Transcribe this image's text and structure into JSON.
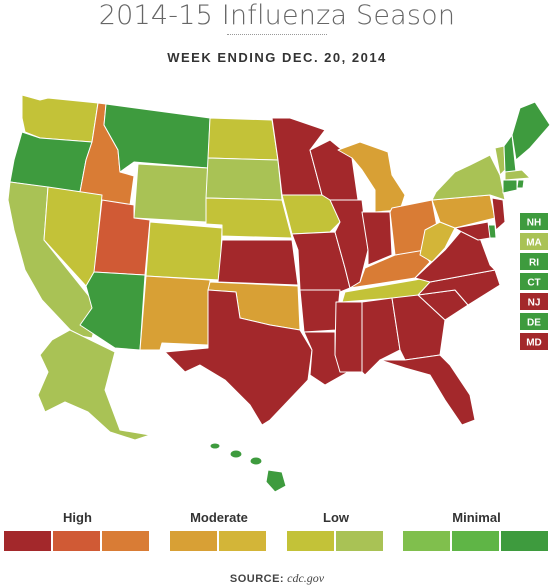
{
  "title": "2014-15 Influenza Season",
  "subtitle": "WEEK ENDING DEC. 20, 2014",
  "colors": {
    "high1": "#a3282b",
    "high2": "#d05a35",
    "high3": "#d97c35",
    "mod1": "#d8a035",
    "mod2": "#d3b538",
    "low1": "#c3c238",
    "low2": "#a9c255",
    "min1": "#80bf4d",
    "min2": "#5fb546",
    "min3": "#3e9b3e"
  },
  "states": {
    "WA": "low1",
    "OR": "min3",
    "CA": "low2",
    "ID": "high3",
    "NV": "low1",
    "MT": "min3",
    "WY": "low2",
    "UT": "high2",
    "AZ": "min3",
    "CO": "low1",
    "NM": "mod1",
    "ND": "low1",
    "SD": "low2",
    "NE": "low1",
    "KS": "high1",
    "OK": "mod1",
    "TX": "high1",
    "MN": "high1",
    "IA": "low1",
    "MO": "high1",
    "AR": "high1",
    "LA": "high1",
    "WI": "high1",
    "IL": "high1",
    "MS": "high1",
    "MI": "mod1",
    "IN": "high1",
    "KY": "high3",
    "TN": "low1",
    "AL": "high1",
    "OH": "high3",
    "WV": "mod2",
    "GA": "high1",
    "FL": "high1",
    "SC": "high1",
    "NC": "high1",
    "VA": "high1",
    "PA": "mod1",
    "NY": "low2",
    "VT": "low2",
    "ME": "min3",
    "NH": "min3",
    "MA": "low2",
    "RI": "min3",
    "CT": "min3",
    "NJ": "high1",
    "DE": "min3",
    "MD": "high1",
    "AK": "low2",
    "HI": "min3"
  },
  "small_states": [
    {
      "label": "NH",
      "color": "min3"
    },
    {
      "label": "MA",
      "color": "low2"
    },
    {
      "label": "RI",
      "color": "min3"
    },
    {
      "label": "CT",
      "color": "min3"
    },
    {
      "label": "NJ",
      "color": "high1"
    },
    {
      "label": "DE",
      "color": "min3"
    },
    {
      "label": "MD",
      "color": "high1"
    }
  ],
  "legend": [
    {
      "label": "High",
      "colors": [
        "#a3282b",
        "#d05a35",
        "#d97c35"
      ]
    },
    {
      "label": "Moderate",
      "colors": [
        "#d8a035",
        "#d3b538"
      ]
    },
    {
      "label": "Low",
      "colors": [
        "#c3c238",
        "#a9c255"
      ]
    },
    {
      "label": "Minimal",
      "colors": [
        "#80bf4d",
        "#5fb546",
        "#3e9b3e"
      ]
    }
  ],
  "source": {
    "label": "SOURCE:",
    "value": "cdc.gov"
  }
}
